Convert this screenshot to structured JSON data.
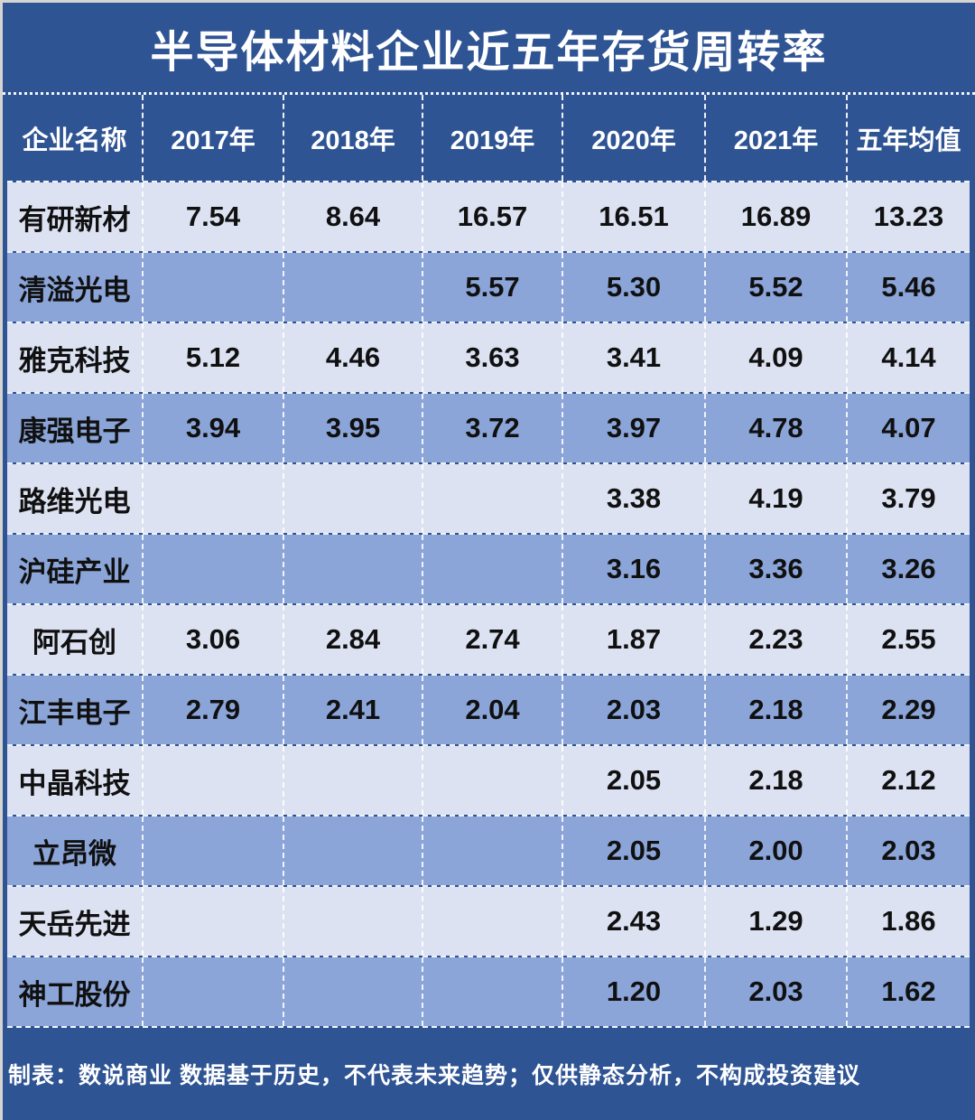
{
  "title": "半导体材料企业近五年存货周转率",
  "footer": {
    "text": "制表：数说商业 数据基于历史，不代表未来趋势；仅供静态分析，不构成投资建议"
  },
  "colors": {
    "background_navy": "#2F5494",
    "row_light": "#DCE2F2",
    "row_dark": "#8BA5D9",
    "grid_lines": "#FFFFFF",
    "title_text": "#FFFFFF",
    "cell_text": "#101010",
    "edge_strip": "#D5D6D2"
  },
  "chart_data": {
    "type": "table",
    "title": "半导体材料企业近五年存货周转率",
    "columns": [
      "企业名称",
      "2017年",
      "2018年",
      "2019年",
      "2020年",
      "2021年",
      "五年均值"
    ],
    "rows": [
      {
        "company": "有研新材",
        "values": [
          "7.54",
          "8.64",
          "16.57",
          "16.51",
          "16.89",
          "13.23"
        ]
      },
      {
        "company": "清溢光电",
        "values": [
          "",
          "",
          "5.57",
          "5.30",
          "5.52",
          "5.46"
        ]
      },
      {
        "company": "雅克科技",
        "values": [
          "5.12",
          "4.46",
          "3.63",
          "3.41",
          "4.09",
          "4.14"
        ]
      },
      {
        "company": "康强电子",
        "values": [
          "3.94",
          "3.95",
          "3.72",
          "3.97",
          "4.78",
          "4.07"
        ]
      },
      {
        "company": "路维光电",
        "values": [
          "",
          "",
          "",
          "3.38",
          "4.19",
          "3.79"
        ]
      },
      {
        "company": "沪硅产业",
        "values": [
          "",
          "",
          "",
          "3.16",
          "3.36",
          "3.26"
        ]
      },
      {
        "company": "阿石创",
        "values": [
          "3.06",
          "2.84",
          "2.74",
          "1.87",
          "2.23",
          "2.55"
        ]
      },
      {
        "company": "江丰电子",
        "values": [
          "2.79",
          "2.41",
          "2.04",
          "2.03",
          "2.18",
          "2.29"
        ]
      },
      {
        "company": "中晶科技",
        "values": [
          "",
          "",
          "",
          "2.05",
          "2.18",
          "2.12"
        ]
      },
      {
        "company": "立昂微",
        "values": [
          "",
          "",
          "",
          "2.05",
          "2.00",
          "2.03"
        ]
      },
      {
        "company": "天岳先进",
        "values": [
          "",
          "",
          "",
          "2.43",
          "1.29",
          "1.86"
        ]
      },
      {
        "company": "神工股份",
        "values": [
          "",
          "",
          "",
          "1.20",
          "2.03",
          "1.62"
        ]
      }
    ],
    "layout": {
      "grid": "dashed-white",
      "row_striping": [
        "light",
        "dark"
      ],
      "header_background": "navy",
      "values_missing_shown_as": "blank"
    }
  }
}
